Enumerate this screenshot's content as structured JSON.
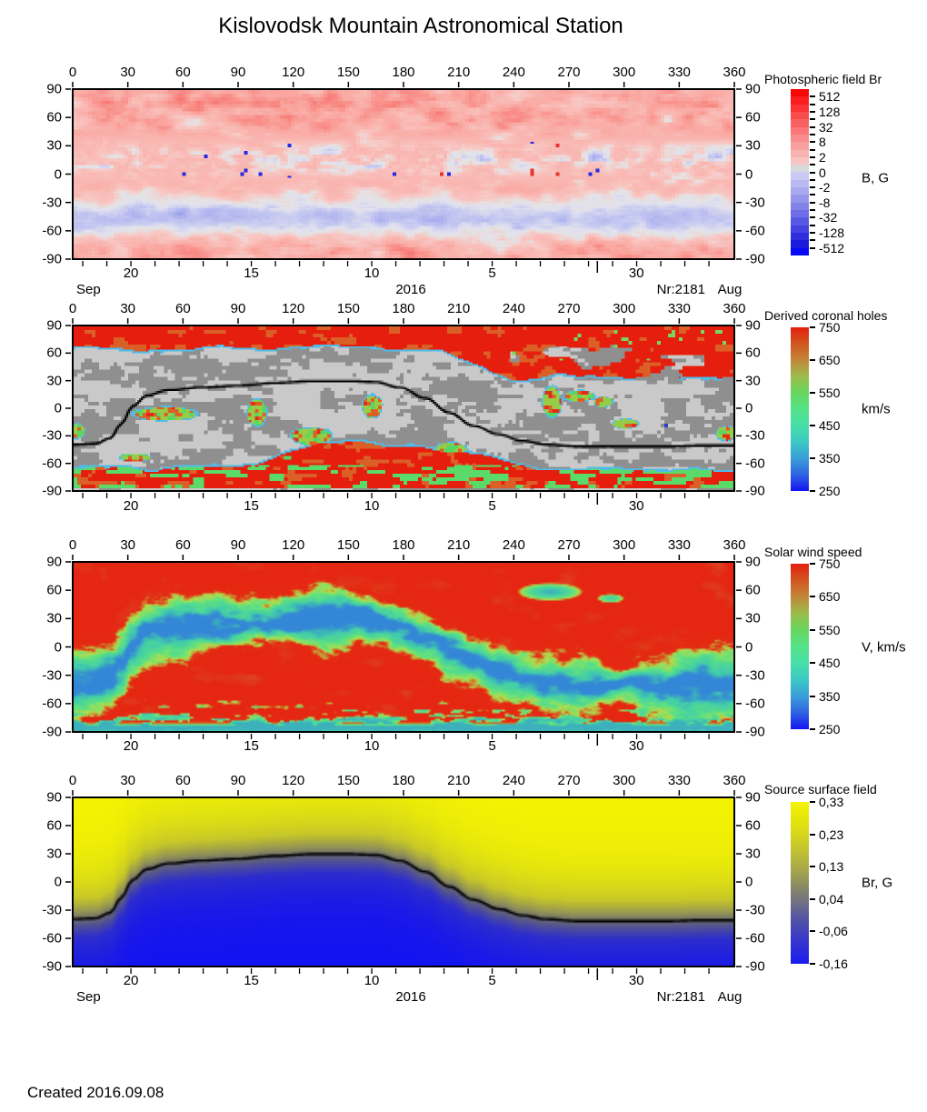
{
  "page": {
    "title": "Kislovodsk Mountain Astronomical Station",
    "created_label": "Created  2016.09.08"
  },
  "colors": {
    "background": "#ffffff",
    "frame": "#000000",
    "text": "#000000",
    "neutral_line": "#000000",
    "coronal_hole_gray_light": "#c9c9c9",
    "coronal_hole_gray_dark": "#8f8f8f",
    "open_field_red": "#e61e0e",
    "hole_outline_cyan": "#50bce8"
  },
  "axes": {
    "lon_ticks": [
      "0",
      "30",
      "60",
      "90",
      "120",
      "150",
      "180",
      "210",
      "240",
      "270",
      "300",
      "330",
      "360"
    ],
    "lat_ticks": [
      "90",
      "60",
      "30",
      "0",
      "-30",
      "-60",
      "-90"
    ],
    "lon_range": [
      0,
      360
    ],
    "lat_range": [
      90,
      -90
    ],
    "time_axis": {
      "date_ticks": [
        {
          "label": "20",
          "f": 0.088
        },
        {
          "label": "15",
          "f": 0.27
        },
        {
          "label": "10",
          "f": 0.452
        },
        {
          "label": "5",
          "f": 0.634
        },
        {
          "label": "30",
          "f": 0.852
        }
      ],
      "minor_start_f": 0.0152,
      "minor_step_f": 0.0364,
      "month_tick_f": 0.793
    }
  },
  "neutral_line": [
    [
      0,
      -40
    ],
    [
      12,
      -39
    ],
    [
      20,
      -33
    ],
    [
      26,
      -17
    ],
    [
      32,
      2
    ],
    [
      40,
      14
    ],
    [
      52,
      20
    ],
    [
      70,
      23
    ],
    [
      90,
      25
    ],
    [
      110,
      28
    ],
    [
      130,
      30
    ],
    [
      150,
      30
    ],
    [
      165,
      29
    ],
    [
      178,
      23
    ],
    [
      192,
      11
    ],
    [
      205,
      -5
    ],
    [
      218,
      -19
    ],
    [
      232,
      -29
    ],
    [
      245,
      -36
    ],
    [
      258,
      -40
    ],
    [
      275,
      -42
    ],
    [
      300,
      -42
    ],
    [
      325,
      -42
    ],
    [
      345,
      -41
    ],
    [
      360,
      -41
    ]
  ],
  "chart_data": [
    {
      "type": "heatmap",
      "panel": 1,
      "colorbar": {
        "title": "Photospheric field Br",
        "unit": "B, G",
        "style": "discrete-diverging",
        "tick_labels": [
          "512",
          "128",
          "32",
          "8",
          "2",
          "0",
          "-2",
          "-8",
          "-32",
          "-128",
          "-512"
        ],
        "segment_colors": [
          "#fb0606",
          "#fb1d1d",
          "#fa3434",
          "#fa4b4b",
          "#f96161",
          "#f97777",
          "#f88c8c",
          "#f8a0a0",
          "#f7b2b2",
          "#f7c3c3",
          "#d9d9d9",
          "#c9c9f3",
          "#babaf1",
          "#a9a9ee",
          "#9696ec",
          "#8282e9",
          "#6d6de7",
          "#5858e4",
          "#4343e1",
          "#2e2edf",
          "#1a1adc",
          "#0808fb"
        ]
      },
      "date_row": {
        "left": "Sep",
        "center": "2016",
        "right": "Nr:2181",
        "far_right": "Aug"
      },
      "description": "Synoptic map of the photospheric radial magnetic field for Carrington rotation 2181; pink positive-polarity background with blue negative-polarity active-region band near +15 deg latitude and a pale blue band near -45 deg."
    },
    {
      "type": "heatmap",
      "panel": 2,
      "colorbar": {
        "title": "Derived coronal holes",
        "unit": "km/s",
        "style": "gradient",
        "tick_labels": [
          "750",
          "650",
          "550",
          "450",
          "350",
          "250"
        ],
        "range": [
          750,
          250
        ],
        "gradient": [
          "#e41f10",
          "#d0561f",
          "#c28738",
          "#9cbb4a",
          "#67d75f",
          "#55e287",
          "#47dfa8",
          "#3cc9c4",
          "#3a9ed8",
          "#2f63e2",
          "#1414f2"
        ]
      },
      "description": "Coronal hole map: closed-field regions in two gray shades, open-field polar and equatorial holes colored by predicted wind speed (red fast, green/blue slow) with cyan boundaries; black magnetic neutral line."
    },
    {
      "type": "heatmap",
      "panel": 3,
      "colorbar": {
        "title": "Solar wind speed",
        "unit": "V, km/s",
        "style": "gradient",
        "tick_labels": [
          "750",
          "650",
          "550",
          "450",
          "350",
          "250"
        ],
        "range": [
          750,
          250
        ],
        "gradient": [
          "#e41f10",
          "#d0561f",
          "#c28738",
          "#9cbb4a",
          "#67d75f",
          "#55e287",
          "#47dfa8",
          "#3cc9c4",
          "#3a9ed8",
          "#2f63e2",
          "#1414f2"
        ]
      },
      "description": "Predicted solar wind speed map: fast red wind at high latitudes, slow green/blue wind belt meandering along the neutral line."
    },
    {
      "type": "heatmap",
      "panel": 4,
      "colorbar": {
        "title": "Source surface field",
        "unit": "Br, G",
        "style": "gradient",
        "tick_labels": [
          "0,33",
          "0,23",
          "0,13",
          "0,04",
          "-0,06",
          "-0,16"
        ],
        "gradient": [
          "#f4f400",
          "#e0e010",
          "#c6c62e",
          "#a4a44c",
          "#7d7d74",
          "#5656a2",
          "#3636cd",
          "#1c1cf0"
        ]
      },
      "date_row": {
        "left": "Sep",
        "center": "2016",
        "right": "Nr:2181",
        "far_right": "Aug"
      },
      "description": "Smooth source-surface radial field: positive yellow in the north, negative blue in the south, separated by the black neutral line."
    }
  ]
}
